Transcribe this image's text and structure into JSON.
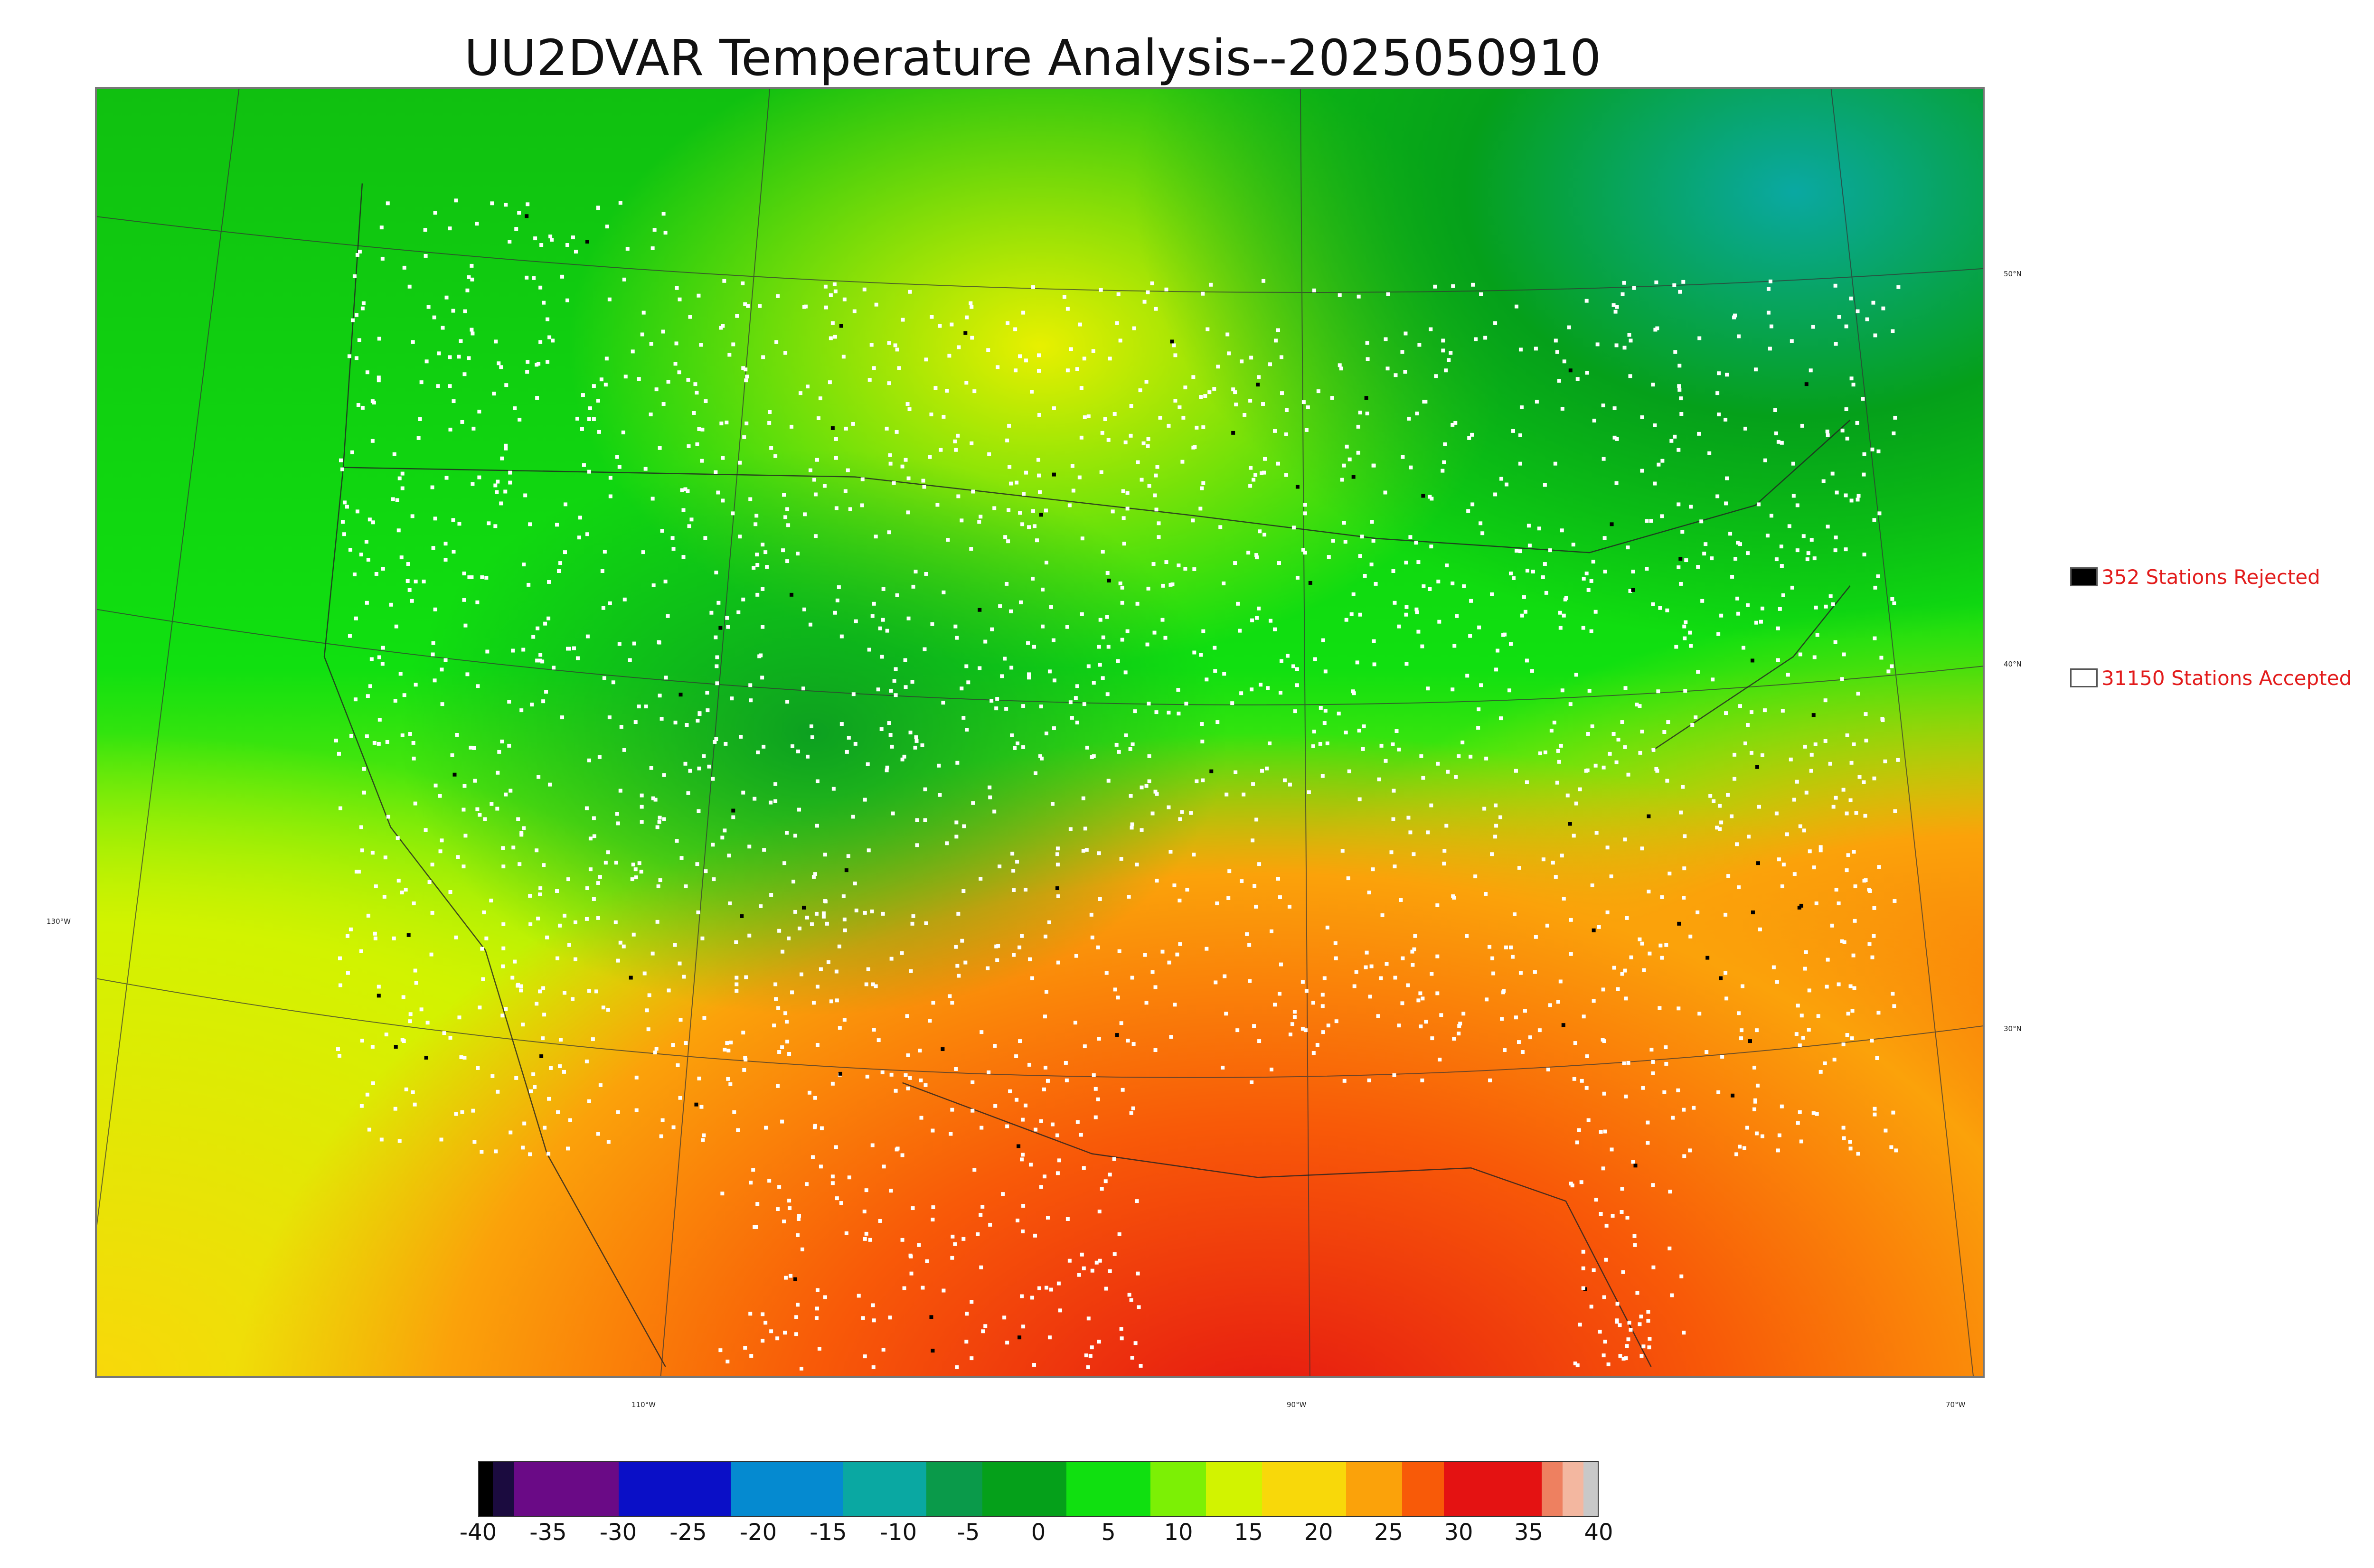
{
  "title": "UU2DVAR Temperature Analysis--2025050910",
  "legend": {
    "rejected": {
      "label": "352 Stations Rejected",
      "swatch_color": "#000000"
    },
    "accepted": {
      "label": "31150 Stations Accepted",
      "swatch_color": "#ffffff"
    }
  },
  "graticule": {
    "lat_labels": [
      "50°N",
      "40°N",
      "30°N"
    ],
    "lon_labels": [
      "130°W",
      "110°W",
      "90°W",
      "70°W"
    ]
  },
  "colorbar": {
    "tick_labels": [
      "-40",
      "-35",
      "-30",
      "-25",
      "-20",
      "-15",
      "-10",
      "-5",
      "0",
      "5",
      "10",
      "15",
      "20",
      "25",
      "30",
      "35",
      "40"
    ],
    "range": [
      -40,
      40
    ],
    "colors": [
      {
        "from": -40,
        "to": -39,
        "color": "#000000"
      },
      {
        "from": -39,
        "to": -37.5,
        "color": "#1b0b3f"
      },
      {
        "from": -37.5,
        "to": -30,
        "color": "#6a0a86"
      },
      {
        "from": -30,
        "to": -22,
        "color": "#0a0fc7"
      },
      {
        "from": -22,
        "to": -14,
        "color": "#058ad0"
      },
      {
        "from": -14,
        "to": -8,
        "color": "#0aa8a2"
      },
      {
        "from": -8,
        "to": -4,
        "color": "#0a9a4a"
      },
      {
        "from": -4,
        "to": 2,
        "color": "#05a01a"
      },
      {
        "from": 2,
        "to": 8,
        "color": "#10e010"
      },
      {
        "from": 8,
        "to": 12,
        "color": "#7cf005"
      },
      {
        "from": 12,
        "to": 16,
        "color": "#d2f300"
      },
      {
        "from": 16,
        "to": 22,
        "color": "#f8d80a"
      },
      {
        "from": 22,
        "to": 26,
        "color": "#fba20a"
      },
      {
        "from": 26,
        "to": 29,
        "color": "#f85a08"
      },
      {
        "from": 29,
        "to": 36,
        "color": "#e41212"
      },
      {
        "from": 36,
        "to": 37.5,
        "color": "#ee8060"
      },
      {
        "from": 37.5,
        "to": 39,
        "color": "#f3b7a0"
      },
      {
        "from": 39,
        "to": 40,
        "color": "#c8c8c8"
      }
    ]
  }
}
